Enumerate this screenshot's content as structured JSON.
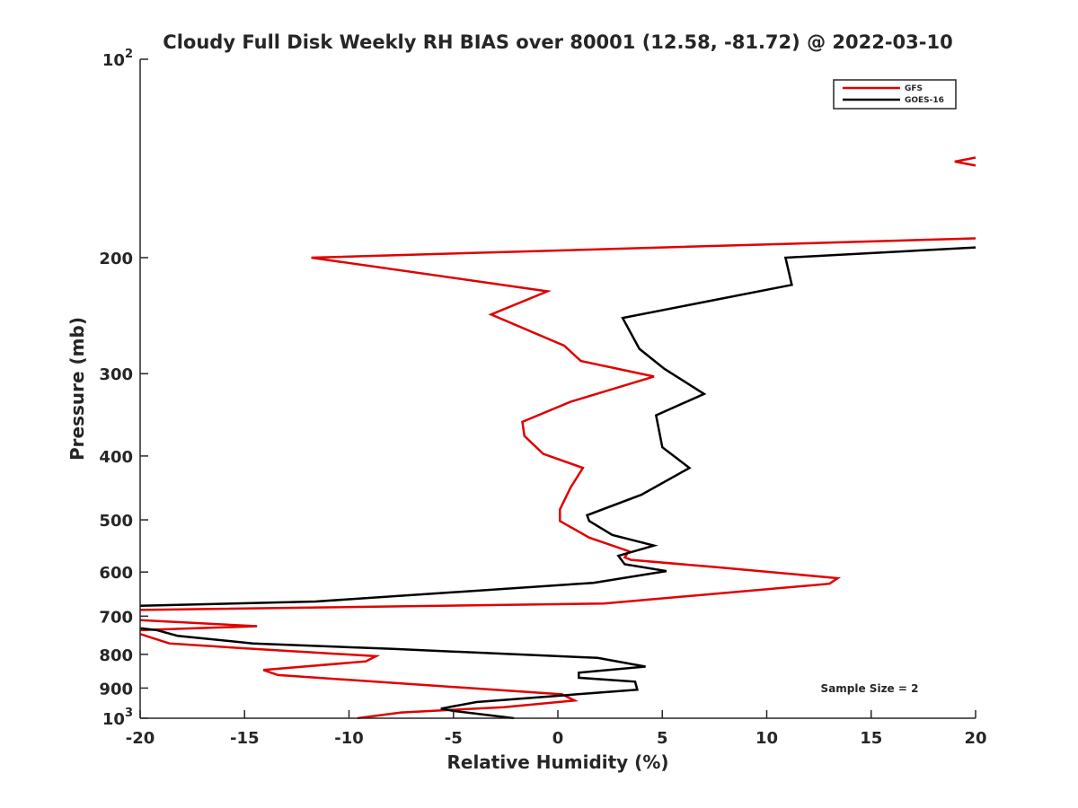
{
  "chart_data": {
    "type": "line",
    "title": "Cloudy Full Disk Weekly RH BIAS over 80001 (12.58, -81.72) @ 2022-03-10",
    "xlabel": "Relative Humidity (%)",
    "ylabel": "Pressure (mb)",
    "xlim": [
      -20,
      20
    ],
    "ylim": [
      100,
      1000
    ],
    "y_scale": "log",
    "y_reversed": true,
    "grid": false,
    "legend_position": "top-right",
    "x_ticks": [
      -20,
      -15,
      -10,
      -5,
      0,
      5,
      10,
      15,
      20
    ],
    "y_ticks": [
      {
        "value": 100,
        "base": "10",
        "exp": "2"
      },
      {
        "value": 200,
        "label": "200"
      },
      {
        "value": 300,
        "label": "300"
      },
      {
        "value": 400,
        "label": "400"
      },
      {
        "value": 500,
        "label": "500"
      },
      {
        "value": 600,
        "label": "600"
      },
      {
        "value": 700,
        "label": "700"
      },
      {
        "value": 800,
        "label": "800"
      },
      {
        "value": 900,
        "label": "900"
      },
      {
        "value": 1000,
        "base": "10",
        "exp": "3"
      }
    ],
    "annotation": "Sample Size = 2",
    "series": [
      {
        "name": "GFS",
        "color": "#e00000",
        "points": [
          [
            20,
            141
          ],
          [
            19.0,
            143
          ],
          [
            20,
            145
          ],
          null,
          [
            20,
            187
          ],
          [
            -11.8,
            200
          ],
          [
            -0.5,
            225
          ],
          [
            -3.2,
            244
          ],
          [
            0.3,
            272
          ],
          [
            1.1,
            287
          ],
          [
            4.6,
            303
          ],
          [
            0.6,
            331
          ],
          [
            -1.7,
            355
          ],
          [
            -1.6,
            373
          ],
          [
            -0.7,
            397
          ],
          [
            1.2,
            417
          ],
          [
            0.6,
            447
          ],
          [
            0.1,
            482
          ],
          [
            0.1,
            502
          ],
          [
            1.5,
            532
          ],
          [
            3.4,
            558
          ],
          [
            3.2,
            570
          ],
          [
            3.5,
            575
          ],
          [
            7.6,
            590
          ],
          [
            13.4,
            613
          ],
          [
            13.0,
            625
          ],
          [
            2.2,
            670
          ],
          [
            -20,
            685
          ],
          null,
          [
            -20,
            710
          ],
          [
            -14.4,
            725
          ],
          [
            -20,
            735
          ],
          null,
          [
            -20,
            745
          ],
          [
            -18.6,
            770
          ],
          [
            -15.1,
            783
          ],
          [
            -8.7,
            805
          ],
          [
            -9.2,
            820
          ],
          [
            -14.1,
            845
          ],
          [
            -13.4,
            860
          ],
          [
            0.2,
            920
          ],
          [
            0.8,
            940
          ],
          [
            -2.6,
            962
          ],
          [
            -7.5,
            980
          ],
          [
            -9.6,
            1000
          ]
        ]
      },
      {
        "name": "GOES-16",
        "color": "#000000",
        "points": [
          [
            20,
            193
          ],
          [
            10.9,
            200
          ],
          [
            11.2,
            220
          ],
          [
            3.1,
            247
          ],
          [
            3.9,
            275
          ],
          [
            5.1,
            295
          ],
          [
            7.0,
            322
          ],
          [
            4.7,
            347
          ],
          [
            5.0,
            388
          ],
          [
            6.3,
            417
          ],
          [
            4.0,
            458
          ],
          [
            1.4,
            492
          ],
          [
            1.5,
            502
          ],
          [
            2.6,
            527
          ],
          [
            4.6,
            547
          ],
          [
            2.9,
            567
          ],
          [
            3.2,
            584
          ],
          [
            5.2,
            598
          ],
          [
            1.7,
            623
          ],
          [
            -11.6,
            665
          ],
          [
            -20,
            675
          ],
          null,
          [
            -20,
            730
          ],
          [
            -19.2,
            735
          ],
          [
            -18.2,
            750
          ],
          [
            -14.6,
            770
          ],
          [
            -7.9,
            785
          ],
          [
            1.9,
            810
          ],
          [
            4.2,
            835
          ],
          [
            1.0,
            853
          ],
          [
            1.0,
            868
          ],
          [
            3.7,
            880
          ],
          [
            3.8,
            905
          ],
          [
            -3.9,
            945
          ],
          [
            -5.6,
            967
          ],
          [
            -5.0,
            975
          ],
          [
            -2.1,
            1000
          ]
        ]
      }
    ]
  }
}
